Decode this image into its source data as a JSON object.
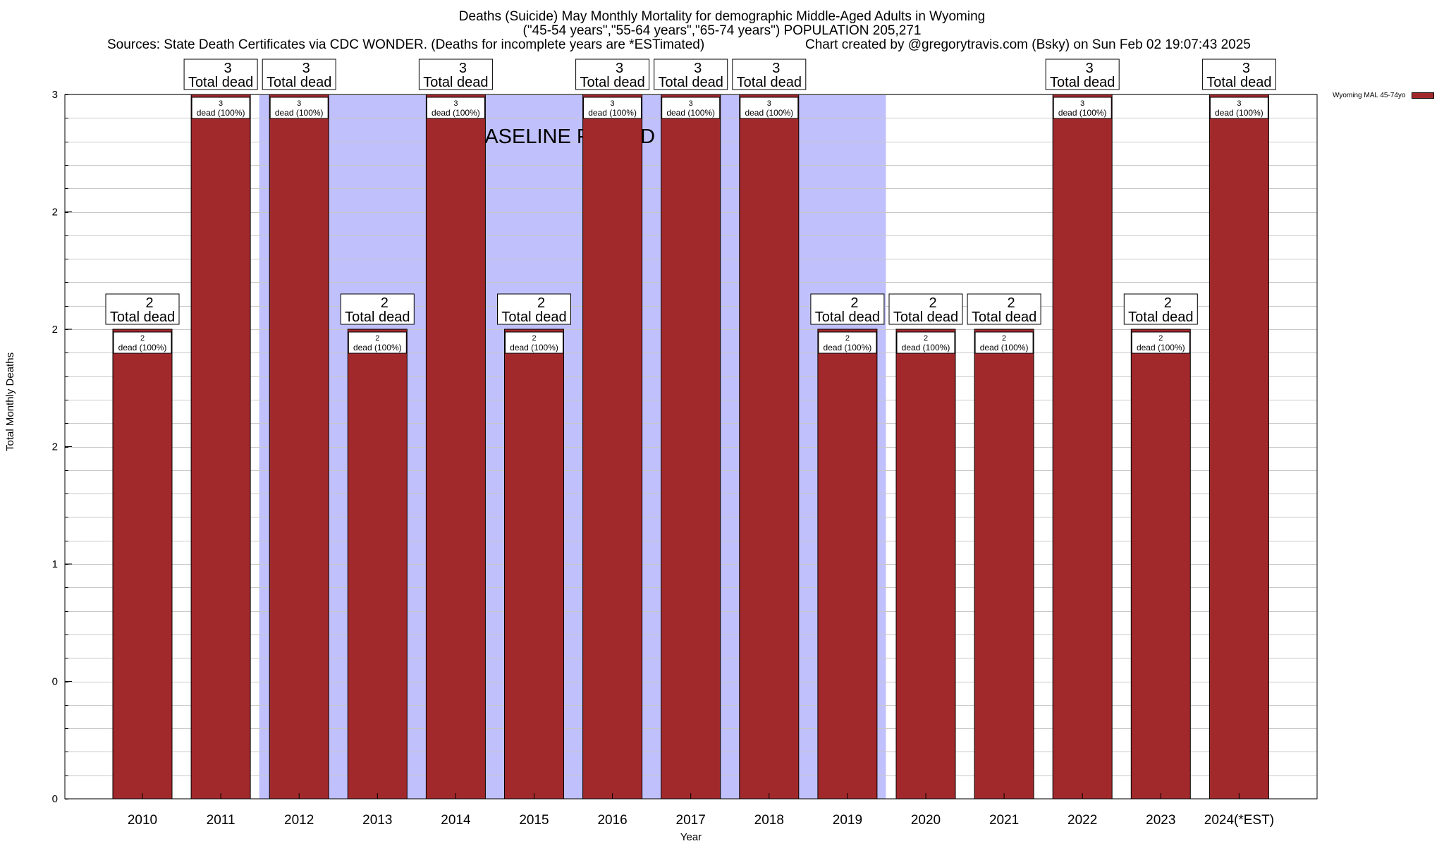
{
  "header": {
    "title": "Deaths (Suicide) May Monthly Mortality for demographic Middle-Aged Adults in Wyoming",
    "subtitle": "(\"45-54 years\",\"55-64 years\",\"65-74 years\") POPULATION 205,271",
    "sources": "Sources: State Death Certificates via CDC WONDER. (Deaths for incomplete years are *ESTimated)",
    "credit": "Chart created by @gregorytravis.com (Bsky) on Sun Feb 02 19:07:43 2025"
  },
  "chart_data": {
    "type": "bar",
    "title": "Deaths (Suicide) May Monthly Mortality for demographic Middle-Aged Adults in Wyoming",
    "xlabel": "Year",
    "ylabel": "Total Monthly Deaths",
    "categories": [
      "2010",
      "2011",
      "2012",
      "2013",
      "2014",
      "2015",
      "2016",
      "2017",
      "2018",
      "2019",
      "2020",
      "2021",
      "2022",
      "2023",
      "2024(*EST)"
    ],
    "series": [
      {
        "name": "Wyoming MAL 45-74yo",
        "values": [
          2,
          3,
          3,
          2,
          3,
          2,
          3,
          3,
          3,
          2,
          2,
          2,
          3,
          2,
          3
        ]
      }
    ],
    "ylim": [
      0,
      3
    ],
    "yticks": [
      0,
      0.5,
      1,
      1.5,
      2,
      2.5,
      3
    ],
    "ytick_labels": [
      "0",
      "0",
      "1",
      "2",
      "2",
      "2",
      "3"
    ],
    "bar_label_suffix": "Total dead",
    "inner_label_suffix": "dead (100%)",
    "baseline_period": {
      "label": "BASELINE PERIOD",
      "start": "2012",
      "end": "2019"
    },
    "grid": true,
    "legend_position": "top-right",
    "colors": {
      "bar": "#a2292b",
      "baseline_band": "#c0c0fc",
      "grid": "#c8c8c8"
    }
  }
}
